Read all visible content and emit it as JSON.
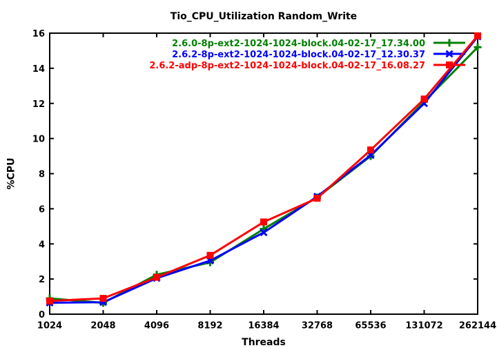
{
  "chart_data": {
    "type": "line",
    "title": "Tio_CPU_Utilization Random_Write",
    "xlabel": "Threads",
    "ylabel": "%CPU",
    "x_scale": "log2",
    "x": [
      1024,
      2048,
      4096,
      8192,
      16384,
      32768,
      65536,
      131072,
      262144
    ],
    "x_tick_labels": [
      "1024",
      "2048",
      "4096",
      "8192",
      "16384",
      "32768",
      "65536",
      "131072",
      "262144"
    ],
    "y_ticks": [
      0,
      2,
      4,
      6,
      8,
      10,
      12,
      14,
      16
    ],
    "ylim": [
      0,
      16
    ],
    "grid": false,
    "legend_position": "top-right-inside",
    "series": [
      {
        "name": "2.6.0-8p-ext2-1024-1024-block.04-02-17_17.34.00",
        "color": "#008000",
        "marker": "plus",
        "values": [
          0.9,
          0.64,
          2.25,
          2.95,
          4.85,
          6.65,
          9.0,
          12.1,
          15.2
        ]
      },
      {
        "name": "2.6.2-8p-ext2-1024-1024-block.04-02-17_12.30.37",
        "color": "#0000ff",
        "marker": "cross",
        "values": [
          0.65,
          0.68,
          2.05,
          3.05,
          4.65,
          6.7,
          9.05,
          12.0,
          15.8
        ]
      },
      {
        "name": "2.6.2-adp-8p-ext2-1024-1024-block.04-02-17_16.08.27",
        "color": "#ff0000",
        "marker": "square",
        "values": [
          0.75,
          0.9,
          2.1,
          3.35,
          5.25,
          6.6,
          9.35,
          12.25,
          15.85
        ]
      }
    ]
  },
  "colors": {
    "background": "#ffffff",
    "frame": "#000000",
    "text": "#000000"
  }
}
